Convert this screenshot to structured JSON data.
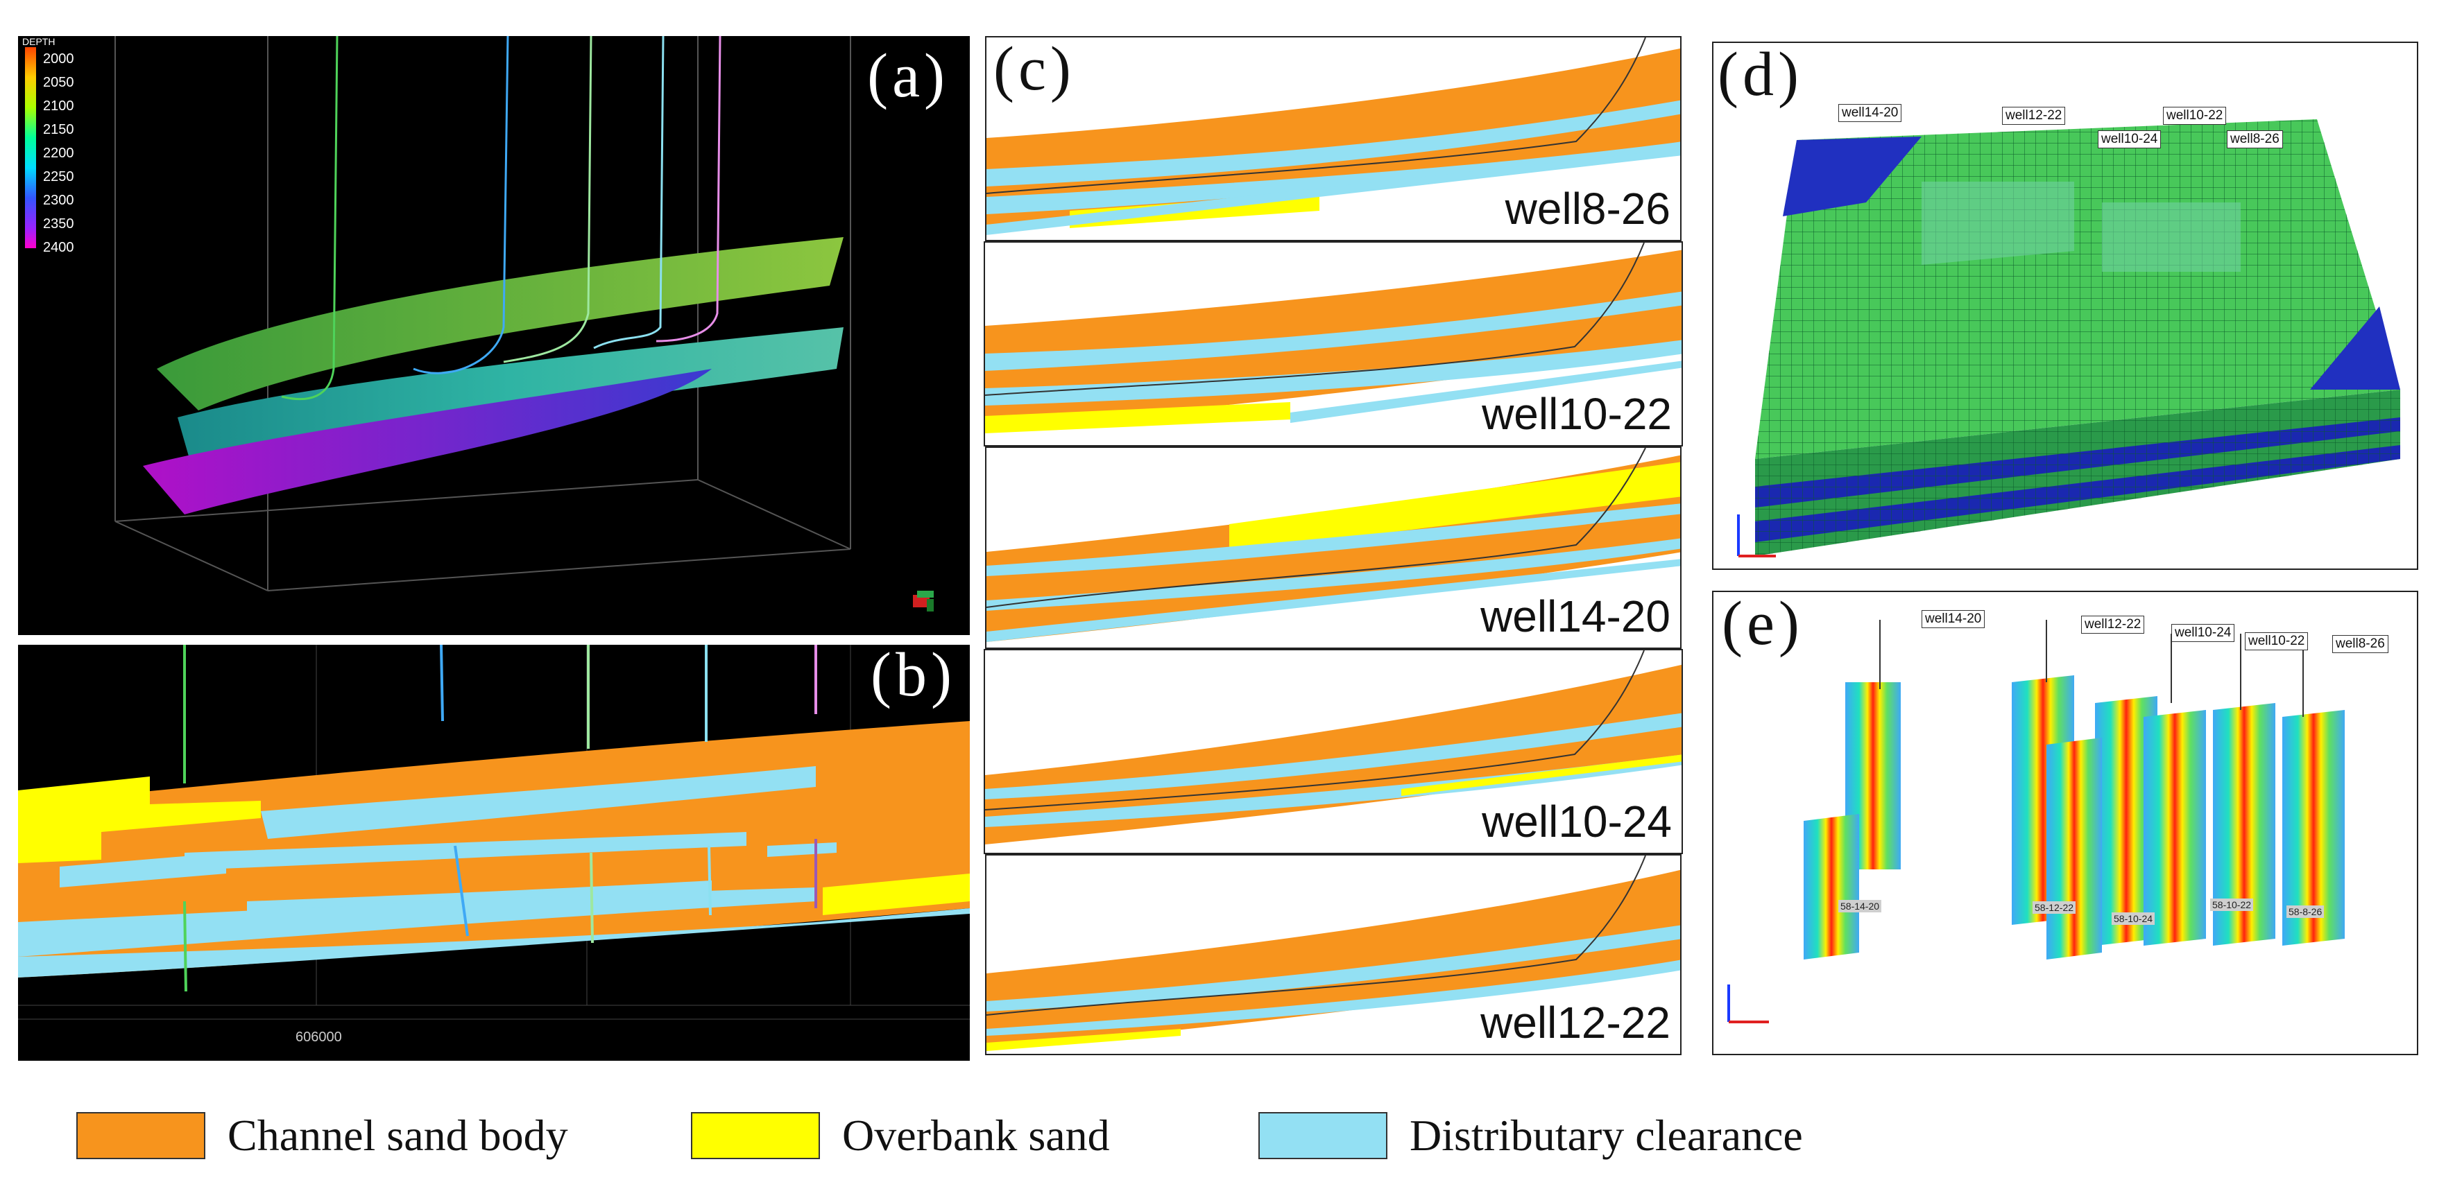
{
  "panels": {
    "a": {
      "label": "(a)",
      "colorbar": {
        "title": "DEPTH",
        "ticks": [
          "2000",
          "2050",
          "2100",
          "2150",
          "2200",
          "2250",
          "2300",
          "2350",
          "2400"
        ]
      }
    },
    "b": {
      "label": "(b)",
      "axis_tick": "606000"
    },
    "c": {
      "label": "(c)",
      "sections": [
        "well8-26",
        "well10-22",
        "well14-20",
        "well10-24",
        "well12-22"
      ]
    },
    "d": {
      "label": "(d)",
      "well_tags": [
        "well14-20",
        "well12-22",
        "well10-22",
        "well10-24",
        "well8-26"
      ]
    },
    "e": {
      "label": "(e)",
      "well_tags": [
        "well14-20",
        "well12-22",
        "well10-24",
        "well10-22",
        "well8-26"
      ],
      "bottom_tags": [
        "58-14-20",
        "58-12-22",
        "58-10-24",
        "58-10-22",
        "58-8-26"
      ]
    }
  },
  "legend": [
    {
      "label": "Channel sand body",
      "color": "#f7941d"
    },
    {
      "label": "Overbank sand",
      "color": "#ffff00"
    },
    {
      "label": "Distributary clearance",
      "color": "#93e0f3"
    }
  ],
  "colors": {
    "channel": "#f7941d",
    "overbank": "#ffff00",
    "clearance": "#93e0f3"
  }
}
